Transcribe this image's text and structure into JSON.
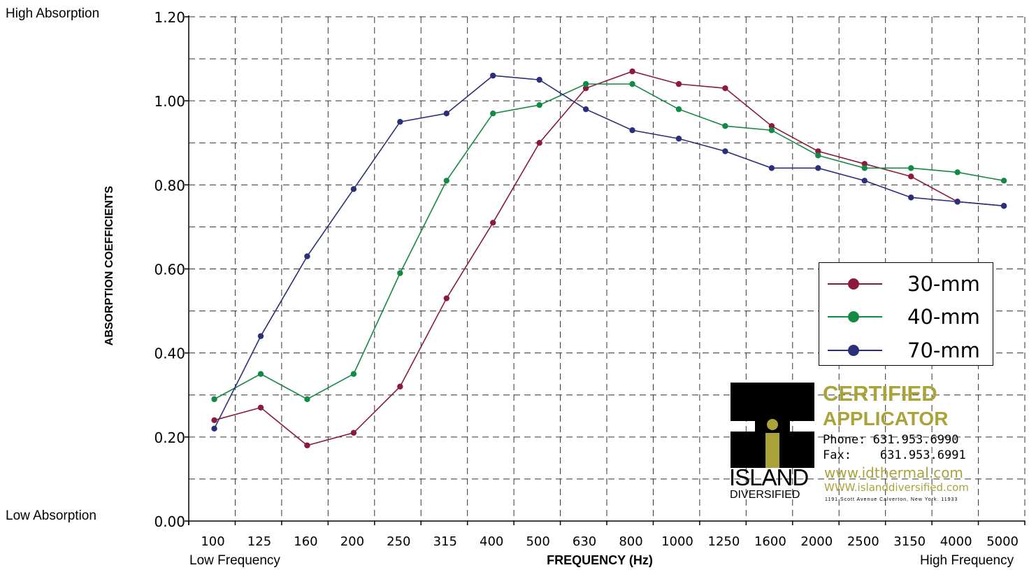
{
  "labels": {
    "high_absorption": "High Absorption",
    "low_absorption": "Low Absorption",
    "low_frequency": "Low Frequency",
    "high_frequency": "High Frequency"
  },
  "chart_data": {
    "type": "line",
    "xlabel": "FREQUENCY (Hz)",
    "ylabel": "ABSORPTION COEFFICIENTS",
    "categories": [
      "100",
      "125",
      "160",
      "200",
      "250",
      "315",
      "400",
      "500",
      "630",
      "800",
      "1000",
      "1250",
      "1600",
      "2000",
      "2500",
      "3150",
      "4000",
      "5000"
    ],
    "y_ticks": [
      "0.00",
      "0.20",
      "0.40",
      "0.60",
      "0.80",
      "1.00",
      "1.20"
    ],
    "ylim": [
      0,
      1.2
    ],
    "grid": true,
    "legend_position": "right",
    "series": [
      {
        "name": "30-mm",
        "color": "#8b1a3c",
        "values": [
          0.24,
          0.27,
          0.18,
          0.21,
          0.32,
          0.53,
          0.71,
          0.9,
          1.03,
          1.07,
          1.04,
          1.03,
          0.94,
          0.88,
          0.85,
          0.82,
          0.76,
          0.75
        ]
      },
      {
        "name": "40-mm",
        "color": "#138a44",
        "values": [
          0.29,
          0.35,
          0.29,
          0.35,
          0.59,
          0.81,
          0.97,
          0.99,
          1.04,
          1.04,
          0.98,
          0.94,
          0.93,
          0.87,
          0.84,
          0.84,
          0.83,
          0.81
        ]
      },
      {
        "name": "70-mm",
        "color": "#2b2f78",
        "values": [
          0.22,
          0.44,
          0.63,
          0.79,
          0.95,
          0.97,
          1.06,
          1.05,
          0.98,
          0.93,
          0.91,
          0.88,
          0.84,
          0.84,
          0.81,
          0.77,
          0.76,
          0.75
        ]
      }
    ]
  },
  "logo": {
    "certified": "CERTIFIED",
    "applicator": "APPLICATOR",
    "phone": "Phone: 631.953.6990",
    "fax": "Fax:    631.953.6991",
    "web1": "www.idthermal.com",
    "web2": "WWW.islanddiversified.com",
    "address": "1191 Scott Avenue Calverton, New York. 11933",
    "island": "ISLAND",
    "diversified": "DIVERSIFIED",
    "accent_color": "#a9a33a"
  }
}
